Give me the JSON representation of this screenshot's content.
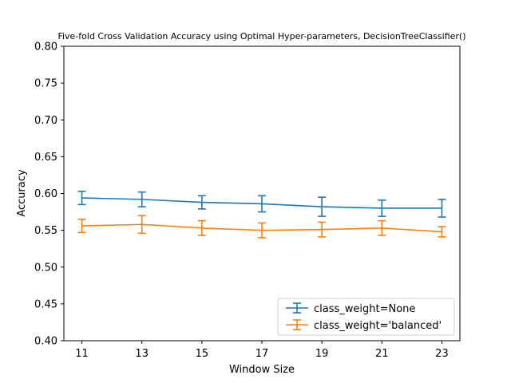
{
  "chart_data": {
    "type": "line",
    "title": "Five-fold Cross Validation Accuracy using Optimal Hyper-parameters, DecisionTreeClassifier()",
    "xlabel": "Window Size",
    "ylabel": "Accuracy",
    "x": [
      11,
      13,
      15,
      17,
      19,
      21,
      23
    ],
    "xticks": [
      "11",
      "13",
      "15",
      "17",
      "19",
      "21",
      "23"
    ],
    "xlim": [
      10.4,
      23.6
    ],
    "ylim": [
      0.4,
      0.8
    ],
    "yticks": [
      "0.40",
      "0.45",
      "0.50",
      "0.55",
      "0.60",
      "0.65",
      "0.70",
      "0.75",
      "0.80"
    ],
    "grid": false,
    "legend_position": "lower right",
    "series": [
      {
        "name": "class_weight=None",
        "color": "#1f77b4",
        "values": [
          0.594,
          0.592,
          0.588,
          0.586,
          0.582,
          0.58,
          0.58
        ],
        "errors": [
          0.009,
          0.01,
          0.009,
          0.011,
          0.013,
          0.011,
          0.012
        ]
      },
      {
        "name": "class_weight='balanced'",
        "color": "#ff7f0e",
        "values": [
          0.556,
          0.558,
          0.553,
          0.55,
          0.551,
          0.553,
          0.548
        ],
        "errors": [
          0.009,
          0.012,
          0.01,
          0.01,
          0.01,
          0.01,
          0.007
        ]
      }
    ]
  }
}
